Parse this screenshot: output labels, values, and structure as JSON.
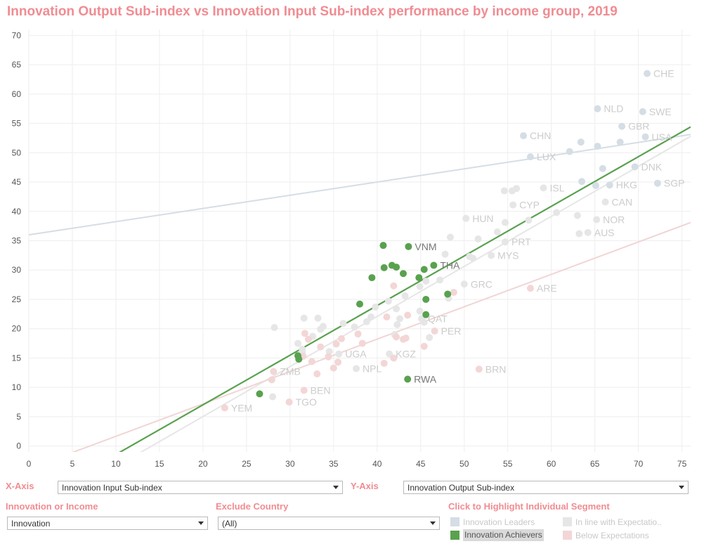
{
  "title": "Innovation Output Sub-index vs Innovation Input Sub-index  performance by income group, 2019",
  "controls": {
    "x_axis_label": "X-Axis",
    "x_axis_value": "Innovation Input Sub-index",
    "y_axis_label": "Y-Axis",
    "y_axis_value": "Innovation Output Sub-index",
    "innovation_income_label": "Innovation or Income",
    "innovation_income_value": "Innovation",
    "exclude_country_label": "Exclude Country",
    "exclude_country_value": "(All)",
    "highlight_label": "Click to Highlight Individual Segment"
  },
  "legend": [
    {
      "label": "Innovation Leaders",
      "color": "#d5dde5"
    },
    {
      "label": "In line with Expectatio..",
      "color": "#e6e6e6"
    },
    {
      "label": "Innovation Achievers",
      "color": "#59a14f"
    },
    {
      "label": "Below Expectations",
      "color": "#f3d6d6"
    }
  ],
  "chart_data": {
    "type": "scatter",
    "title": "Innovation Output Sub-index vs Innovation Input Sub-index  performance by income group, 2019",
    "xlim": [
      0,
      76
    ],
    "ylim": [
      -1,
      71
    ],
    "x_ticks": [
      0,
      5,
      10,
      15,
      20,
      25,
      30,
      35,
      40,
      45,
      50,
      55,
      60,
      65,
      70,
      75
    ],
    "y_ticks": [
      0,
      5,
      10,
      15,
      20,
      25,
      30,
      35,
      40,
      45,
      50,
      55,
      60,
      65,
      70
    ],
    "grid": true,
    "colors": {
      "leaders": "#d5dde5",
      "inline": "#e6e6e6",
      "achievers": "#59a14f",
      "below": "#f3d6d6",
      "label_faded": "#cccccc",
      "label_strong": "#777777",
      "line_leaders": "#d5dde5",
      "line_inline": "#e6e6e6",
      "line_achievers": "#59a14f",
      "line_below": "#f1d5d5"
    },
    "trend_lines": [
      {
        "segment": "leaders",
        "x": [
          0,
          76
        ],
        "y": [
          36,
          53.1
        ]
      },
      {
        "segment": "inline",
        "x": [
          12,
          76
        ],
        "y": [
          -1.8,
          52.8
        ]
      },
      {
        "segment": "below",
        "x": [
          5,
          76
        ],
        "y": [
          -1.1,
          38.1
        ]
      },
      {
        "segment": "achievers",
        "x": [
          10.4,
          76
        ],
        "y": [
          -1.1,
          54.4
        ]
      }
    ],
    "series": [
      {
        "segment": "leaders",
        "points": [
          [
            71.0,
            63.5,
            "CHE"
          ],
          [
            65.3,
            57.5,
            "NLD"
          ],
          [
            70.5,
            57.0,
            "SWE"
          ],
          [
            68.1,
            54.5,
            "GBR"
          ],
          [
            70.8,
            52.7,
            "USA"
          ],
          [
            56.8,
            52.9,
            "CHN"
          ],
          [
            57.6,
            49.3,
            "LUX"
          ],
          [
            62.1,
            50.2,
            ""
          ],
          [
            63.4,
            51.8,
            ""
          ],
          [
            65.3,
            51.1,
            ""
          ],
          [
            67.9,
            51.8,
            ""
          ],
          [
            69.6,
            47.6,
            "DNK"
          ],
          [
            66.7,
            44.5,
            "HKG"
          ],
          [
            72.2,
            44.8,
            "SGP"
          ],
          [
            65.9,
            47.3,
            ""
          ],
          [
            63.5,
            45.1,
            ""
          ],
          [
            65.1,
            44.4,
            ""
          ]
        ]
      },
      {
        "segment": "inline",
        "points": [
          [
            59.1,
            44.0,
            "ISL"
          ],
          [
            54.6,
            43.5,
            ""
          ],
          [
            55.5,
            43.5,
            ""
          ],
          [
            56.0,
            43.9,
            ""
          ],
          [
            55.6,
            41.1,
            "CYP"
          ],
          [
            66.2,
            41.6,
            "CAN"
          ],
          [
            60.6,
            39.8,
            ""
          ],
          [
            65.2,
            38.6,
            "NOR"
          ],
          [
            63.0,
            39.3,
            ""
          ],
          [
            50.2,
            38.8,
            "HUN"
          ],
          [
            54.7,
            38.1,
            ""
          ],
          [
            57.4,
            38.5,
            ""
          ],
          [
            64.2,
            36.4,
            "AUS"
          ],
          [
            63.2,
            36.2,
            ""
          ],
          [
            53.8,
            36.5,
            ""
          ],
          [
            54.7,
            34.8,
            "PRT"
          ],
          [
            48.4,
            35.6,
            ""
          ],
          [
            51.6,
            35.3,
            ""
          ],
          [
            53.1,
            32.5,
            "MYS"
          ],
          [
            47.8,
            32.7,
            ""
          ],
          [
            50.6,
            32.3,
            ""
          ],
          [
            51.0,
            32.0,
            ""
          ],
          [
            50.0,
            27.6,
            "GRC"
          ],
          [
            47.2,
            28.3,
            ""
          ],
          [
            45.6,
            28.1,
            ""
          ],
          [
            44.9,
            27.2,
            ""
          ],
          [
            43.2,
            25.6,
            ""
          ],
          [
            48.2,
            25.2,
            ""
          ],
          [
            41.3,
            24.7,
            ""
          ],
          [
            39.8,
            23.7,
            ""
          ],
          [
            39.3,
            22.0,
            ""
          ],
          [
            38.8,
            21.2,
            ""
          ],
          [
            37.4,
            20.3,
            ""
          ],
          [
            36.1,
            20.9,
            ""
          ],
          [
            33.8,
            20.4,
            ""
          ],
          [
            33.5,
            19.9,
            ""
          ],
          [
            33.2,
            21.8,
            ""
          ],
          [
            31.6,
            21.8,
            ""
          ],
          [
            28.2,
            20.2,
            ""
          ],
          [
            32.6,
            18.7,
            ""
          ],
          [
            30.9,
            17.5,
            ""
          ],
          [
            31.4,
            16.5,
            ""
          ],
          [
            34.5,
            16.1,
            ""
          ],
          [
            35.6,
            15.7,
            "UGA"
          ],
          [
            37.6,
            13.2,
            "NPL"
          ],
          [
            41.4,
            15.7,
            "KGZ"
          ],
          [
            42.2,
            23.4,
            ""
          ],
          [
            44.9,
            23.0,
            ""
          ],
          [
            45.4,
            21.1,
            ""
          ],
          [
            46.0,
            18.5,
            ""
          ],
          [
            42.0,
            19.0,
            ""
          ],
          [
            42.6,
            21.7,
            ""
          ],
          [
            45.1,
            21.7,
            "QAT"
          ],
          [
            31.4,
            16.0,
            ""
          ],
          [
            28.0,
            8.4,
            ""
          ],
          [
            42.3,
            20.7,
            ""
          ]
        ]
      },
      {
        "segment": "below",
        "points": [
          [
            57.6,
            26.9,
            "ARE"
          ],
          [
            51.7,
            13.1,
            "BRN"
          ],
          [
            46.6,
            19.6,
            "PER"
          ],
          [
            48.8,
            26.2,
            ""
          ],
          [
            41.9,
            27.3,
            ""
          ],
          [
            41.1,
            22.0,
            ""
          ],
          [
            43.5,
            22.3,
            ""
          ],
          [
            43.3,
            18.4,
            ""
          ],
          [
            43.0,
            18.2,
            ""
          ],
          [
            42.2,
            18.6,
            ""
          ],
          [
            40.8,
            14.1,
            ""
          ],
          [
            38.3,
            17.5,
            ""
          ],
          [
            37.8,
            19.1,
            ""
          ],
          [
            35.9,
            18.3,
            ""
          ],
          [
            35.3,
            17.4,
            ""
          ],
          [
            35.0,
            13.3,
            ""
          ],
          [
            35.5,
            14.3,
            ""
          ],
          [
            34.4,
            15.2,
            ""
          ],
          [
            33.5,
            16.9,
            ""
          ],
          [
            33.1,
            12.3,
            ""
          ],
          [
            32.5,
            14.4,
            ""
          ],
          [
            32.1,
            18.2,
            ""
          ],
          [
            31.7,
            19.2,
            ""
          ],
          [
            31.5,
            15.3,
            ""
          ],
          [
            28.1,
            12.7,
            "ZMB"
          ],
          [
            27.9,
            11.3,
            ""
          ],
          [
            31.6,
            9.5,
            "BEN"
          ],
          [
            29.9,
            7.5,
            "TGO"
          ],
          [
            22.5,
            6.5,
            "YEM"
          ],
          [
            45.4,
            17.0,
            ""
          ],
          [
            41.9,
            15.0,
            ""
          ]
        ]
      },
      {
        "segment": "achievers",
        "points": [
          [
            40.7,
            34.2,
            ""
          ],
          [
            43.6,
            34.0,
            "VNM"
          ],
          [
            46.5,
            30.8,
            "THA"
          ],
          [
            41.7,
            30.8,
            ""
          ],
          [
            40.8,
            30.4,
            ""
          ],
          [
            42.2,
            30.5,
            ""
          ],
          [
            45.4,
            30.1,
            ""
          ],
          [
            43.0,
            29.4,
            ""
          ],
          [
            39.4,
            28.7,
            ""
          ],
          [
            44.8,
            28.7,
            ""
          ],
          [
            38.0,
            24.2,
            ""
          ],
          [
            45.6,
            25.0,
            ""
          ],
          [
            48.1,
            25.9,
            ""
          ],
          [
            45.6,
            22.4,
            ""
          ],
          [
            30.9,
            15.4,
            ""
          ],
          [
            31.0,
            14.8,
            ""
          ],
          [
            26.5,
            8.9,
            ""
          ],
          [
            43.5,
            11.4,
            "RWA"
          ]
        ]
      }
    ]
  }
}
